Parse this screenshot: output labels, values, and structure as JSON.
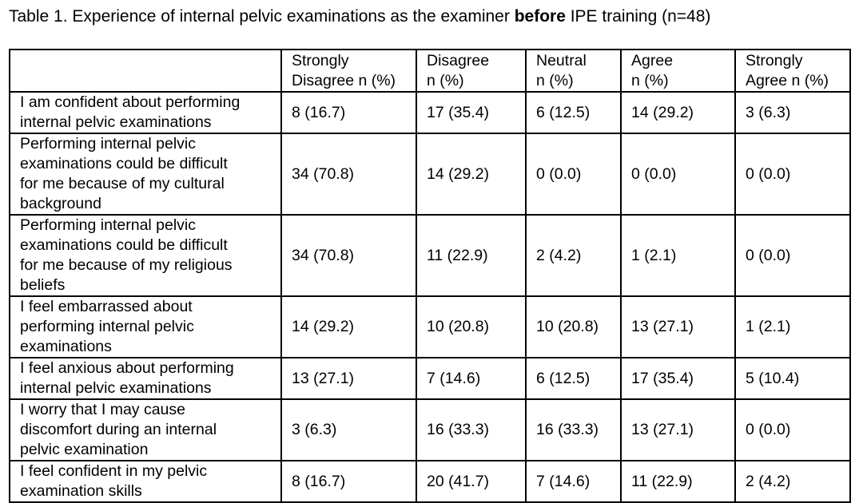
{
  "caption": {
    "prefix": "Table 1. Experience of internal pelvic examinations as the examiner ",
    "emphasis": "before",
    "suffix": " IPE training (n=48)"
  },
  "table": {
    "headers": [
      {
        "line1": "",
        "line2": ""
      },
      {
        "line1": "Strongly",
        "line2": "Disagree n (%)"
      },
      {
        "line1": "Disagree",
        "line2": "n (%)"
      },
      {
        "line1": "Neutral",
        "line2": "n (%)"
      },
      {
        "line1": "Agree",
        "line2": "n (%)"
      },
      {
        "line1": "Strongly",
        "line2": "Agree n (%)"
      }
    ],
    "rows": [
      {
        "statement": [
          "I am confident about performing",
          "internal pelvic examinations"
        ],
        "values": [
          "8 (16.7)",
          "17 (35.4)",
          "6 (12.5)",
          "14 (29.2)",
          "3 (6.3)"
        ]
      },
      {
        "statement": [
          "Performing internal pelvic",
          "examinations could be difficult",
          "for me because of my cultural",
          "background"
        ],
        "values": [
          "34 (70.8)",
          "14 (29.2)",
          "0 (0.0)",
          "0 (0.0)",
          "0 (0.0)"
        ]
      },
      {
        "statement": [
          "Performing internal pelvic",
          "examinations could be difficult",
          "for me because of my religious",
          "beliefs"
        ],
        "values": [
          "34 (70.8)",
          "11 (22.9)",
          "2 (4.2)",
          "1 (2.1)",
          "0 (0.0)"
        ]
      },
      {
        "statement": [
          "I feel embarrassed about",
          "performing internal pelvic",
          "examinations"
        ],
        "values": [
          "14 (29.2)",
          "10 (20.8)",
          "10 (20.8)",
          "13 (27.1)",
          "1 (2.1)"
        ]
      },
      {
        "statement": [
          "I feel anxious about performing",
          "internal pelvic examinations"
        ],
        "values": [
          "13 (27.1)",
          "7 (14.6)",
          "6 (12.5)",
          "17 (35.4)",
          "5 (10.4)"
        ]
      },
      {
        "statement": [
          "I worry that I may cause",
          "discomfort during an internal",
          "pelvic examination"
        ],
        "values": [
          "3 (6.3)",
          "16 (33.3)",
          "16 (33.3)",
          "13 (27.1)",
          "0 (0.0)"
        ]
      },
      {
        "statement": [
          "I feel confident in my pelvic",
          "examination skills"
        ],
        "values": [
          "8 (16.7)",
          "20 (41.7)",
          "7 (14.6)",
          "11 (22.9)",
          "2 (4.2)"
        ]
      }
    ]
  }
}
